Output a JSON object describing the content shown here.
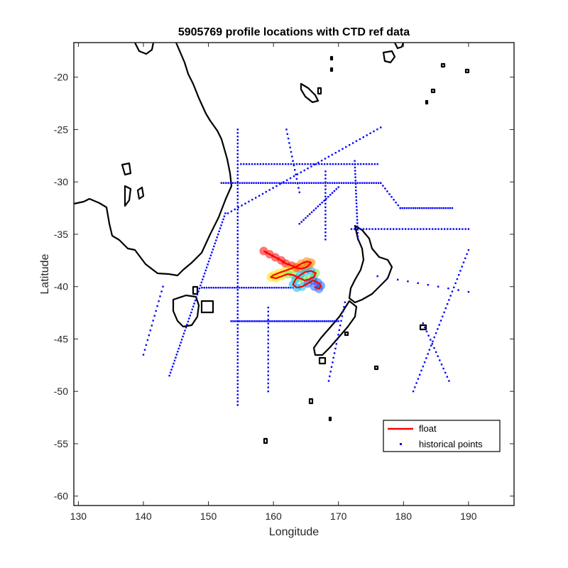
{
  "chart_data": {
    "type": "scatter",
    "title": "5905769 profile locations with CTD ref data",
    "xlabel": "Longitude",
    "ylabel": "Latitude",
    "xlim": [
      129.3,
      197
    ],
    "ylim": [
      -60.9,
      -16.7
    ],
    "xticks": [
      130,
      140,
      150,
      160,
      170,
      180,
      190
    ],
    "yticks": [
      -20,
      -25,
      -30,
      -35,
      -40,
      -45,
      -50,
      -55,
      -60
    ],
    "grid": false,
    "legend": {
      "placement": "bottom-right",
      "entries": [
        {
          "label": "float",
          "color": "#ff0000",
          "marker": "line"
        },
        {
          "label": "historical points",
          "color": "#0000ff",
          "marker": "dot"
        }
      ]
    },
    "series": [
      {
        "name": "float",
        "color": "#ff0000",
        "x": [
          158.5,
          159.4,
          160.3,
          161.2,
          161.9,
          162.8,
          163.5,
          164.2,
          164.9,
          165.4,
          165.8,
          165.1,
          164.3,
          163.5,
          162.6,
          161.7,
          160.8,
          160.0,
          159.6,
          160.4,
          161.3,
          162.2,
          163.1,
          164.0,
          164.8,
          165.5,
          166.2,
          166.5,
          165.8,
          164.9,
          164.1,
          163.4,
          163.0,
          163.6,
          164.4,
          165.3,
          166.1,
          166.8,
          167.3,
          167.0,
          166.3
        ],
        "y": [
          -36.6,
          -36.9,
          -37.2,
          -37.5,
          -37.8,
          -38.0,
          -38.2,
          -38.3,
          -38.2,
          -38.0,
          -37.7,
          -37.6,
          -37.8,
          -38.1,
          -38.3,
          -38.5,
          -38.7,
          -38.9,
          -39.1,
          -39.2,
          -39.0,
          -38.8,
          -38.9,
          -39.2,
          -39.4,
          -39.3,
          -39.1,
          -38.7,
          -38.5,
          -38.6,
          -38.9,
          -39.3,
          -39.8,
          -40.1,
          -40.0,
          -39.7,
          -39.4,
          -39.6,
          -39.9,
          -40.2,
          -40.0
        ]
      },
      {
        "name": "historical points",
        "color": "#0000ff",
        "lines": [
          {
            "x": [
              152.0,
              176.5
            ],
            "y": [
              -30.1,
              -30.1
            ],
            "n": 70
          },
          {
            "x": [
              176.5,
              179.5
            ],
            "y": [
              -30.1,
              -32.5
            ],
            "n": 10
          },
          {
            "x": [
              179.5,
              187.5
            ],
            "y": [
              -32.5,
              -32.5
            ],
            "n": 25
          },
          {
            "x": [
              155.0,
              176.0
            ],
            "y": [
              -28.3,
              -28.3
            ],
            "n": 50
          },
          {
            "x": [
              153.5,
              170.0
            ],
            "y": [
              -43.3,
              -43.3
            ],
            "n": 55
          },
          {
            "x": [
              149.0,
              163.0
            ],
            "y": [
              -40.1,
              -40.1
            ],
            "n": 40
          },
          {
            "x": [
              154.5,
              154.5
            ],
            "y": [
              -25.0,
              -51.3
            ],
            "n": 80
          },
          {
            "x": [
              159.2,
              159.2
            ],
            "y": [
              -42.0,
              -50.0
            ],
            "n": 22
          },
          {
            "x": [
              153.0,
              176.5
            ],
            "y": [
              -33.0,
              -24.8
            ],
            "n": 45
          },
          {
            "x": [
              152.6,
              144.0
            ],
            "y": [
              -33.0,
              -48.5
            ],
            "n": 55
          },
          {
            "x": [
              172.0,
              190.0
            ],
            "y": [
              -34.5,
              -34.5
            ],
            "n": 40
          },
          {
            "x": [
              190.0,
              181.5
            ],
            "y": [
              -36.5,
              -50.0
            ],
            "n": 35
          },
          {
            "x": [
              183.0,
              187.0
            ],
            "y": [
              -43.5,
              -49.0
            ],
            "n": 15
          },
          {
            "x": [
              164.0,
              170.0
            ],
            "y": [
              -34.0,
              -30.5
            ],
            "n": 20
          },
          {
            "x": [
              168.0,
              168.0
            ],
            "y": [
              -29.0,
              -35.5
            ],
            "n": 20
          },
          {
            "x": [
              172.5,
              173.0
            ],
            "y": [
              -28.0,
              -35.5
            ],
            "n": 25
          },
          {
            "x": [
              162.0,
              164.0
            ],
            "y": [
              -25.0,
              -31.0
            ],
            "n": 15
          },
          {
            "x": [
              176.0,
              190.0
            ],
            "y": [
              -39.0,
              -40.5
            ],
            "n": 10
          },
          {
            "x": [
              171.0,
              168.5
            ],
            "y": [
              -41.5,
              -49.0
            ],
            "n": 18
          },
          {
            "x": [
              143.0,
              140.0
            ],
            "y": [
              -40.0,
              -46.5
            ],
            "n": 15
          }
        ]
      }
    ]
  }
}
